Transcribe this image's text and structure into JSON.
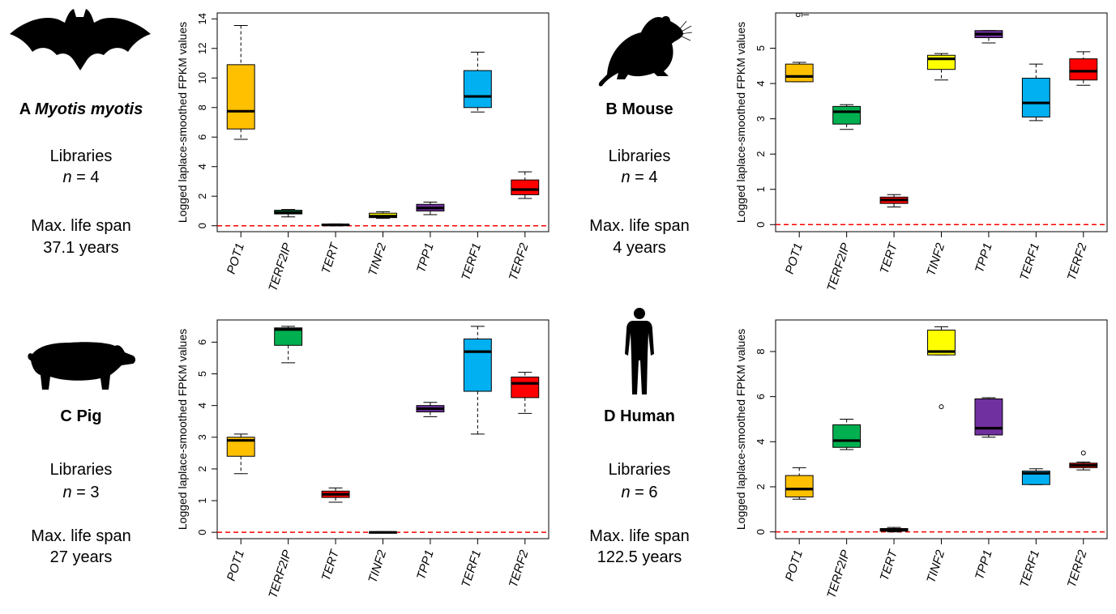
{
  "chart_data": [
    {
      "type": "box",
      "panel_letter": "A",
      "organism": "Myotis myotis",
      "organism_italic": true,
      "libraries_label": "Libraries",
      "n_label": "n",
      "n_value": "= 4",
      "lifespan_label": "Max. life span",
      "lifespan_value": "37.1 years",
      "ylabel": "Logged laplace-smoothed FPKM values",
      "ylim": [
        -0.4,
        14.4
      ],
      "yticks": [
        0,
        2,
        4,
        6,
        8,
        10,
        12,
        14
      ],
      "reference_line": 0,
      "categories": [
        "POT1",
        "TERF2IP",
        "TERT",
        "TINF2",
        "TPP1",
        "TERF1",
        "TERF2"
      ],
      "colors": [
        "#FFC000",
        "#00B050",
        "#FF0000",
        "#FFFF00",
        "#7030A0",
        "#00B0F0",
        "#FF0000"
      ],
      "boxes": [
        {
          "min": 5.85,
          "q1": 6.55,
          "median": 7.75,
          "q3": 10.9,
          "max": 13.55
        },
        {
          "min": 0.6,
          "q1": 0.8,
          "median": 0.9,
          "q3": 1.05,
          "max": 1.1
        },
        {
          "min": 0.0,
          "q1": 0.02,
          "median": 0.06,
          "q3": 0.1,
          "max": 0.13
        },
        {
          "min": 0.5,
          "q1": 0.55,
          "median": 0.65,
          "q3": 0.85,
          "max": 0.95
        },
        {
          "min": 0.75,
          "q1": 1.0,
          "median": 1.2,
          "q3": 1.45,
          "max": 1.6
        },
        {
          "min": 7.7,
          "q1": 8.0,
          "median": 8.75,
          "q3": 10.5,
          "max": 11.75
        },
        {
          "min": 1.85,
          "q1": 2.1,
          "median": 2.45,
          "q3": 3.1,
          "max": 3.65
        }
      ],
      "outliers": []
    },
    {
      "type": "box",
      "panel_letter": "B",
      "organism": "Mouse",
      "organism_italic": false,
      "libraries_label": "Libraries",
      "n_label": "n",
      "n_value": "= 4",
      "lifespan_label": "Max. life span",
      "lifespan_value": "4 years",
      "ylabel": "Logged laplace-smoothed FPKM values",
      "ylim": [
        -0.2,
        6.0
      ],
      "yticks": [
        0,
        1,
        2,
        3,
        4,
        5
      ],
      "reference_line": 0,
      "categories": [
        "POT1",
        "TERF2IP",
        "TERT",
        "TINF2",
        "TPP1",
        "TERF1",
        "TERF2"
      ],
      "colors": [
        "#FFC000",
        "#00B050",
        "#FF0000",
        "#FFFF00",
        "#7030A0",
        "#00B0F0",
        "#FF0000"
      ],
      "boxes": [
        {
          "min": 4.05,
          "q1": 4.05,
          "median": 4.2,
          "q3": 4.55,
          "max": 4.6
        },
        {
          "min": 2.7,
          "q1": 2.85,
          "median": 3.2,
          "q3": 3.35,
          "max": 3.4
        },
        {
          "min": 0.5,
          "q1": 0.6,
          "median": 0.7,
          "q3": 0.78,
          "max": 0.85
        },
        {
          "min": 4.1,
          "q1": 4.4,
          "median": 4.7,
          "q3": 4.8,
          "max": 4.85
        },
        {
          "min": 5.15,
          "q1": 5.3,
          "median": 5.4,
          "q3": 5.5,
          "max": 5.5
        },
        {
          "min": 2.95,
          "q1": 3.05,
          "median": 3.45,
          "q3": 4.15,
          "max": 4.55
        },
        {
          "min": 3.95,
          "q1": 4.1,
          "median": 4.35,
          "q3": 4.7,
          "max": 4.9
        }
      ],
      "outliers": [
        {
          "category": "POT1",
          "label": "6",
          "value": 5.95
        }
      ]
    },
    {
      "type": "box",
      "panel_letter": "C",
      "organism": "Pig",
      "organism_italic": false,
      "libraries_label": "Libraries",
      "n_label": "n",
      "n_value": "= 3",
      "lifespan_label": "Max. life span",
      "lifespan_value": "27 years",
      "ylabel": "Logged laplace-smoothed FPKM values",
      "ylim": [
        -0.2,
        6.7
      ],
      "yticks": [
        0,
        1,
        2,
        3,
        4,
        5,
        6
      ],
      "reference_line": 0,
      "categories": [
        "POT1",
        "TERF2IP",
        "TERT",
        "TINF2",
        "TPP1",
        "TERF1",
        "TERF2"
      ],
      "colors": [
        "#FFC000",
        "#00B050",
        "#FF0000",
        "#FFFF00",
        "#7030A0",
        "#00B0F0",
        "#FF0000"
      ],
      "boxes": [
        {
          "min": 1.85,
          "q1": 2.4,
          "median": 2.9,
          "q3": 3.0,
          "max": 3.1
        },
        {
          "min": 5.35,
          "q1": 5.9,
          "median": 6.4,
          "q3": 6.45,
          "max": 6.5
        },
        {
          "min": 0.95,
          "q1": 1.1,
          "median": 1.2,
          "q3": 1.3,
          "max": 1.4
        },
        {
          "min": -0.02,
          "q1": -0.01,
          "median": 0.0,
          "q3": 0.01,
          "max": 0.02
        },
        {
          "min": 3.65,
          "q1": 3.8,
          "median": 3.9,
          "q3": 4.0,
          "max": 4.1
        },
        {
          "min": 3.1,
          "q1": 4.45,
          "median": 5.7,
          "q3": 6.1,
          "max": 6.5
        },
        {
          "min": 3.75,
          "q1": 4.25,
          "median": 4.7,
          "q3": 4.9,
          "max": 5.05
        }
      ],
      "outliers": []
    },
    {
      "type": "box",
      "panel_letter": "D",
      "organism": "Human",
      "organism_italic": false,
      "libraries_label": "Libraries",
      "n_label": "n",
      "n_value": "= 6",
      "lifespan_label": "Max. life span",
      "lifespan_value": "122.5 years",
      "ylabel": "Logged laplace-smoothed FPKM values",
      "ylim": [
        -0.3,
        9.4
      ],
      "yticks": [
        0,
        2,
        4,
        6,
        8
      ],
      "reference_line": 0,
      "categories": [
        "POT1",
        "TERF2IP",
        "TERT",
        "TINF2",
        "TPP1",
        "TERF1",
        "TERF2"
      ],
      "colors": [
        "#FFC000",
        "#00B050",
        "#FF0000",
        "#FFFF00",
        "#7030A0",
        "#00B0F0",
        "#FF0000"
      ],
      "boxes": [
        {
          "min": 1.45,
          "q1": 1.55,
          "median": 1.9,
          "q3": 2.5,
          "max": 2.85
        },
        {
          "min": 3.65,
          "q1": 3.75,
          "median": 4.05,
          "q3": 4.75,
          "max": 5.0
        },
        {
          "min": 0.0,
          "q1": 0.03,
          "median": 0.08,
          "q3": 0.15,
          "max": 0.2
        },
        {
          "min": 7.85,
          "q1": 7.85,
          "median": 8.0,
          "q3": 8.95,
          "max": 9.1
        },
        {
          "min": 4.2,
          "q1": 4.3,
          "median": 4.6,
          "q3": 5.9,
          "max": 5.95
        },
        {
          "min": 2.1,
          "q1": 2.1,
          "median": 2.6,
          "q3": 2.7,
          "max": 2.8
        },
        {
          "min": 2.75,
          "q1": 2.85,
          "median": 2.95,
          "q3": 3.05,
          "max": 3.1
        }
      ],
      "outliers": [
        {
          "category": "TINF2",
          "label": "",
          "value": 5.55
        },
        {
          "category": "TERF2",
          "label": "",
          "value": 3.5
        }
      ]
    }
  ],
  "icons": [
    "bat-silhouette-icon",
    "mouse-silhouette-icon",
    "pig-silhouette-icon",
    "human-silhouette-icon"
  ]
}
